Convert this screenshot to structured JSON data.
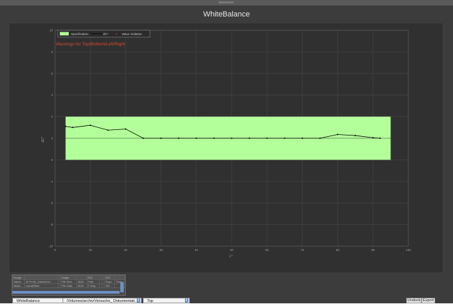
{
  "window": {
    "title": "WhiteBalance"
  },
  "legend": {
    "items": [
      "Specification",
      "dC*",
      "Value Violation"
    ]
  },
  "warning": "Warnings for Top/Bottom/Left/Right",
  "chart_data": {
    "type": "line",
    "title": "WhiteBalance",
    "xlabel": "L*",
    "ylabel": "dC*",
    "xlim": [
      0,
      100
    ],
    "ylim": [
      -10,
      10
    ],
    "xticks": [
      0,
      10,
      20,
      30,
      40,
      50,
      60,
      70,
      80,
      90,
      100
    ],
    "yticks": [
      10,
      8,
      6,
      4,
      2,
      0,
      -2,
      -4,
      -6,
      -8,
      -10
    ],
    "grid": true,
    "legend_position": "top-left",
    "specification_band": {
      "x": [
        3,
        95
      ],
      "y": [
        -2,
        2
      ],
      "color": "#b3ff99"
    },
    "series": [
      {
        "name": "dC*",
        "color": "#000000",
        "x": [
          3,
          5,
          10,
          15,
          20,
          25,
          30,
          35,
          40,
          45,
          50,
          55,
          60,
          65,
          70,
          75,
          80,
          85,
          90,
          92
        ],
        "y": [
          1.1,
          1.0,
          1.2,
          0.75,
          0.85,
          0,
          0,
          0,
          0,
          0,
          0,
          0,
          0,
          0,
          0,
          0,
          0.35,
          0.25,
          0.05,
          0
        ]
      }
    ]
  },
  "info_table": {
    "header": [
      "Image",
      "",
      "",
      "Image",
      "",
      "Exif",
      "",
      "",
      "Exif",
      ""
    ],
    "rows": [
      [
        "Name",
        "ID Profil_Camera IIc",
        "",
        "File Size",
        "1648",
        "Time",
        "",
        "",
        "Expo",
        "Time"
      ],
      [
        "Make",
        "mozaEffekt",
        "",
        "File Date",
        "2016",
        "F-Stop",
        "",
        "",
        "ISO",
        ""
      ]
    ]
  },
  "bottom_bar": {
    "view_select": "WhiteBalance",
    "path_select": "/Volumes/archiv/Versuche_ Dokumentati...",
    "position_select": "Top",
    "undock_label": "Undock",
    "export_label": "Export"
  },
  "icons": {
    "select_arrow": "⇕"
  },
  "colors": {
    "background": "#3c3c3c",
    "plot": "#303030",
    "grid": "#4a4a4a",
    "band": "#b3ff99",
    "warning": "#d94a2a"
  }
}
